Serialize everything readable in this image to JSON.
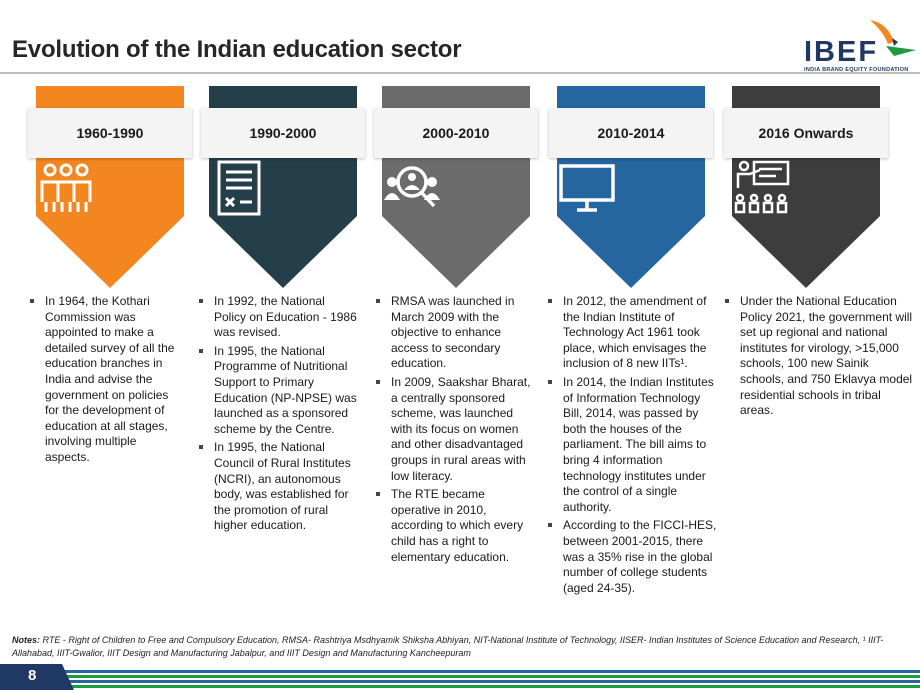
{
  "header": {
    "title": "Evolution of the Indian education sector",
    "logo_text": "IBEF",
    "logo_subtitle": "INDIA BRAND EQUITY FOUNDATION"
  },
  "colors": {
    "orange": "#f3861f",
    "dark_slate": "#243f4a",
    "gray": "#6b6b6b",
    "blue": "#2565a0",
    "charcoal": "#3d3d3d"
  },
  "columns": [
    {
      "period": "1960-1990",
      "icon": "people-group-icon",
      "bullets": [
        "In 1964, the Kothari Commission was appointed to make a detailed survey of all the education branches in India and advise the government on policies for the development of education at all stages, involving multiple aspects."
      ]
    },
    {
      "period": "1990-2000",
      "icon": "policy-document-icon",
      "bullets": [
        "In 1992, the National Policy on Education - 1986 was revised.",
        "In 1995, the National Programme of Nutritional Support to Primary Education (NP-NPSE) was launched as a sponsored scheme by the Centre.",
        "In 1995, the National Council of Rural Institutes (NCRI), an autonomous body, was established for the promotion of rural higher education."
      ]
    },
    {
      "period": "2000-2010",
      "icon": "people-search-icon",
      "bullets": [
        "RMSA was launched in March 2009 with the objective to enhance access to secondary education.",
        "In 2009, Saakshar Bharat, a centrally sponsored scheme, was launched with its focus on women and other disadvantaged groups in rural areas with low literacy.",
        "The RTE became operative in 2010, according to which every child has a right to elementary education."
      ]
    },
    {
      "period": "2010-2014",
      "icon": "monitor-icon",
      "bullets": [
        "In 2012, the amendment of the Indian Institute of Technology Act 1961 took place, which envisages the inclusion of 8 new IITs¹.",
        "In 2014, the Indian Institutes of Information Technology Bill, 2014, was passed by both the houses of the parliament. The bill aims to bring 4 information technology institutes under the control of a single authority.",
        "According to the FICCI-HES, between 2001-2015, there was a 35% rise in the global number of college students (aged 24-35)."
      ]
    },
    {
      "period": "2016 Onwards",
      "icon": "classroom-teacher-icon",
      "bullets": [
        "Under the National Education Policy 2021, the government will set up regional and national institutes for virology, >15,000 schools, 100 new Sainik schools, and 750 Eklavya model residential schools in tribal areas."
      ]
    }
  ],
  "notes": {
    "label": "Notes:",
    "text": " RTE - Right of Children to Free and Compulsory Education, RMSA- Rashtriya Msdhyamik Shiksha Abhiyan, NIT-National Institute of Technology, IISER- Indian Institutes of Science Education and Research, ¹ IIIT-Allahabad, IIIT-Gwalior, IIIT Design and Manufacturing Jabalpur, and IIIT Design and Manufacturing Kancheepuram"
  },
  "footer": {
    "page_number": "8"
  }
}
